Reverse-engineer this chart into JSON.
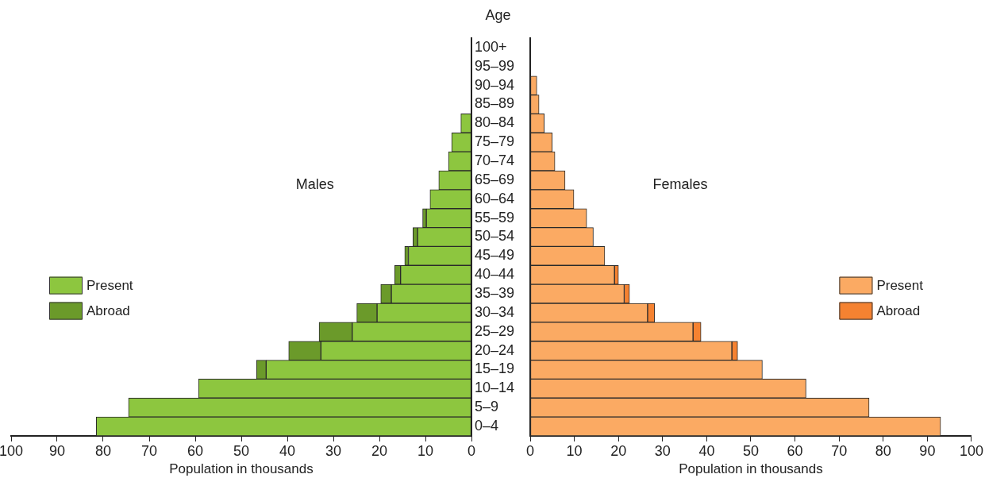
{
  "chart_data": [
    {
      "type": "bar",
      "orientation": "horizontal",
      "stacked": true,
      "title": "Males",
      "ylabel": "Age",
      "xlabel": "Population in thousands",
      "legend": "left",
      "categories": [
        "100+",
        "95–99",
        "90–94",
        "85–89",
        "80–84",
        "75–79",
        "70–74",
        "65–69",
        "60–64",
        "55–59",
        "50–54",
        "45–49",
        "40–44",
        "35–39",
        "30–34",
        "25–29",
        "20–24",
        "15–19",
        "10–14",
        "5–9",
        "0–4"
      ],
      "series": [
        {
          "name": "Present",
          "color": "#8dc63f",
          "values": [
            0,
            0,
            0,
            0,
            2.3,
            4.3,
            5.0,
            7.1,
            9.0,
            9.8,
            11.7,
            13.7,
            15.4,
            17.4,
            20.5,
            25.9,
            32.7,
            44.6,
            59.3,
            74.5,
            81.5
          ]
        },
        {
          "name": "Abroad",
          "color": "#6b9a2a",
          "values": [
            0,
            0,
            0,
            0,
            0,
            0,
            0,
            0,
            0,
            0.8,
            1.0,
            0.8,
            1.3,
            2.3,
            4.4,
            7.2,
            7.0,
            2.1,
            0,
            0,
            0
          ]
        }
      ],
      "xlim": [
        100,
        0
      ],
      "xticks": [
        0,
        10,
        20,
        30,
        40,
        50,
        60,
        70,
        80,
        90,
        100
      ]
    },
    {
      "type": "bar",
      "orientation": "horizontal",
      "stacked": true,
      "title": "Females",
      "xlabel": "Population in thousands",
      "legend": "right",
      "tick_labels": "x",
      "categories": [
        null,
        null,
        null,
        null,
        null,
        null,
        null,
        null,
        null,
        null,
        null,
        null,
        null,
        null,
        null,
        null,
        null,
        null,
        null,
        null,
        null
      ],
      "series": [
        {
          "name": "Present",
          "color": "#fbaa63",
          "values": [
            0,
            0,
            1.5,
            2.0,
            3.2,
            5.0,
            5.6,
            7.9,
            9.9,
            12.8,
            14.3,
            16.9,
            19.1,
            21.3,
            26.6,
            36.9,
            45.7,
            52.6,
            62.5,
            76.8,
            93.0
          ]
        },
        {
          "name": "Abroad",
          "color": "#f58231",
          "values": [
            0,
            0,
            0,
            0,
            0,
            0,
            0,
            0,
            0,
            0,
            0,
            0,
            0.9,
            1.2,
            1.6,
            1.8,
            1.3,
            0,
            0,
            0,
            0
          ]
        }
      ],
      "xlim": [
        0,
        100
      ],
      "xticks": [
        0,
        10,
        20,
        30,
        40,
        50,
        60,
        70,
        80,
        90,
        100
      ]
    }
  ]
}
